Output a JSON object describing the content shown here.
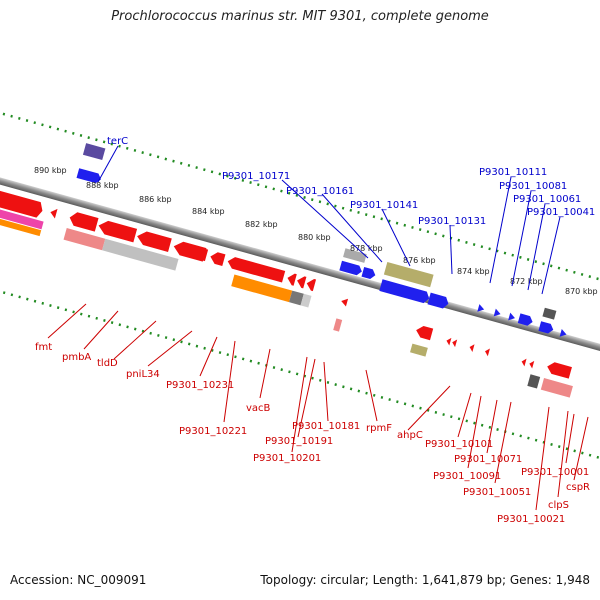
{
  "title": "Prochlorococcus marinus str. MIT 9301, complete genome",
  "footer": {
    "accession": "Accession: NC_009091",
    "topology": "Topology: circular; Length: 1,641,879 bp; Genes: 1,948"
  },
  "colors": {
    "forward_label": "#0000cc",
    "reverse_label": "#cc0000",
    "scale_dots": "#228b22",
    "backbone": "#8a8a8a"
  },
  "scale_ticks": [
    "890 kbp",
    "888 kbp",
    "886 kbp",
    "884 kbp",
    "882 kbp",
    "880 kbp",
    "878 kbp",
    "876 kbp",
    "874 kbp",
    "872 kbp",
    "870 kbp"
  ],
  "forward_labels": [
    "terC",
    "P9301_10171",
    "P9301_10161",
    "P9301_10141",
    "P9301_10131",
    "P9301_10111",
    "P9301_10081",
    "P9301_10061",
    "P9301_10041"
  ],
  "reverse_labels": [
    "fmt",
    "pmbA",
    "tldD",
    "pniL34",
    "P9301_10231",
    "P9301_10221",
    "vacB",
    "P9301_10201",
    "P9301_10191",
    "P9301_10181",
    "rpmF",
    "ahpC",
    "P9301_10101",
    "P9301_10091",
    "P9301_10071",
    "P9301_10051",
    "P9301_10021",
    "clpS",
    "P9301_10001",
    "cspR"
  ]
}
